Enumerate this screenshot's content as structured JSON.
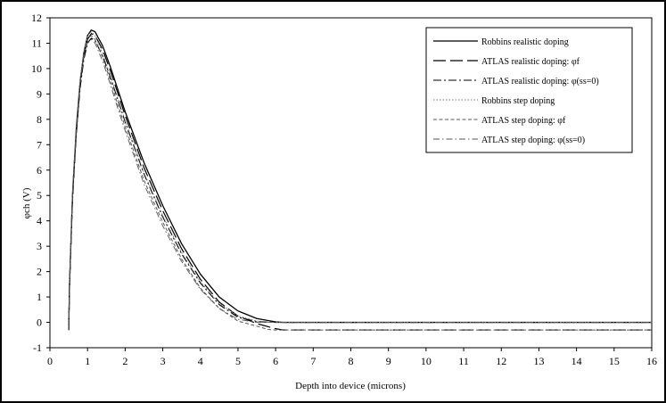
{
  "chart_data": {
    "type": "line",
    "xlabel": "Depth into device (microns)",
    "ylabel": "φch (V)",
    "xlim": [
      0,
      16
    ],
    "ylim": [
      -1,
      12
    ],
    "x_ticks": [
      "0",
      "1",
      "2",
      "3",
      "4",
      "5",
      "6",
      "7",
      "8",
      "9",
      "10",
      "11",
      "12",
      "13",
      "14",
      "15",
      "16"
    ],
    "y_ticks": [
      "-1",
      "0",
      "1",
      "2",
      "3",
      "4",
      "5",
      "6",
      "7",
      "8",
      "9",
      "10",
      "11",
      "12"
    ],
    "grid": false,
    "legend_position": "top-right",
    "series": [
      {
        "name": "Robbins realistic doping",
        "style": "solid",
        "color": "#000000",
        "points": [
          [
            0.5,
            -0.3
          ],
          [
            0.52,
            1.5
          ],
          [
            0.6,
            5.0
          ],
          [
            0.7,
            7.6
          ],
          [
            0.8,
            9.4
          ],
          [
            0.9,
            10.6
          ],
          [
            1.0,
            11.3
          ],
          [
            1.1,
            11.52
          ],
          [
            1.2,
            11.45
          ],
          [
            1.4,
            10.9
          ],
          [
            1.6,
            10.1
          ],
          [
            1.8,
            9.2
          ],
          [
            2.0,
            8.3
          ],
          [
            2.5,
            6.3
          ],
          [
            3.0,
            4.6
          ],
          [
            3.5,
            3.1
          ],
          [
            4.0,
            1.9
          ],
          [
            4.5,
            1.0
          ],
          [
            5.0,
            0.45
          ],
          [
            5.5,
            0.15
          ],
          [
            6.0,
            0.02
          ],
          [
            6.2,
            0.0
          ],
          [
            16.0,
            0.0
          ]
        ]
      },
      {
        "name": "ATLAS realistic doping: φf",
        "style": "long-dash",
        "color": "#000000",
        "points": [
          [
            0.5,
            -0.3
          ],
          [
            0.52,
            1.4
          ],
          [
            0.6,
            4.9
          ],
          [
            0.7,
            7.5
          ],
          [
            0.8,
            9.3
          ],
          [
            0.9,
            10.5
          ],
          [
            1.0,
            11.15
          ],
          [
            1.1,
            11.38
          ],
          [
            1.2,
            11.3
          ],
          [
            1.4,
            10.75
          ],
          [
            1.6,
            9.95
          ],
          [
            1.8,
            9.05
          ],
          [
            2.0,
            8.15
          ],
          [
            2.5,
            6.1
          ],
          [
            3.0,
            4.4
          ],
          [
            3.5,
            2.9
          ],
          [
            4.0,
            1.7
          ],
          [
            4.5,
            0.8
          ],
          [
            5.0,
            0.25
          ],
          [
            5.5,
            -0.05
          ],
          [
            6.0,
            -0.25
          ],
          [
            6.2,
            -0.3
          ],
          [
            16.0,
            -0.3
          ]
        ]
      },
      {
        "name": "ATLAS realistic doping: φ(ss=0)",
        "style": "dash-dot",
        "color": "#000000",
        "points": [
          [
            0.5,
            -0.3
          ],
          [
            0.52,
            1.3
          ],
          [
            0.6,
            4.8
          ],
          [
            0.7,
            7.4
          ],
          [
            0.8,
            9.2
          ],
          [
            0.9,
            10.35
          ],
          [
            1.0,
            11.0
          ],
          [
            1.1,
            11.2
          ],
          [
            1.2,
            11.1
          ],
          [
            1.4,
            10.5
          ],
          [
            1.6,
            9.7
          ],
          [
            1.8,
            8.8
          ],
          [
            2.0,
            7.9
          ],
          [
            2.5,
            5.85
          ],
          [
            3.0,
            4.15
          ],
          [
            3.5,
            2.7
          ],
          [
            4.0,
            1.55
          ],
          [
            4.5,
            0.7
          ],
          [
            5.0,
            0.2
          ],
          [
            5.5,
            0.03
          ],
          [
            6.0,
            0.0
          ],
          [
            16.0,
            0.0
          ]
        ]
      },
      {
        "name": "Robbins step doping",
        "style": "dotted",
        "color": "#777777",
        "points": [
          [
            0.5,
            -0.3
          ],
          [
            0.52,
            1.6
          ],
          [
            0.6,
            5.2
          ],
          [
            0.7,
            7.8
          ],
          [
            0.8,
            9.6
          ],
          [
            0.9,
            10.7
          ],
          [
            1.0,
            11.3
          ],
          [
            1.1,
            11.45
          ],
          [
            1.2,
            11.3
          ],
          [
            1.4,
            10.6
          ],
          [
            1.6,
            9.75
          ],
          [
            1.8,
            8.85
          ],
          [
            2.0,
            7.95
          ],
          [
            2.5,
            5.9
          ],
          [
            3.0,
            4.2
          ],
          [
            3.5,
            2.75
          ],
          [
            4.0,
            1.6
          ],
          [
            4.5,
            0.75
          ],
          [
            5.0,
            0.25
          ],
          [
            5.5,
            0.05
          ],
          [
            6.0,
            0.0
          ],
          [
            16.0,
            0.0
          ]
        ]
      },
      {
        "name": "ATLAS step doping: φf",
        "style": "short-dash",
        "color": "#555555",
        "points": [
          [
            0.5,
            -0.3
          ],
          [
            0.52,
            1.5
          ],
          [
            0.6,
            5.1
          ],
          [
            0.7,
            7.7
          ],
          [
            0.8,
            9.5
          ],
          [
            0.9,
            10.6
          ],
          [
            1.0,
            11.2
          ],
          [
            1.1,
            11.3
          ],
          [
            1.2,
            11.15
          ],
          [
            1.4,
            10.45
          ],
          [
            1.6,
            9.55
          ],
          [
            1.8,
            8.6
          ],
          [
            2.0,
            7.7
          ],
          [
            2.5,
            5.6
          ],
          [
            3.0,
            3.95
          ],
          [
            3.5,
            2.5
          ],
          [
            4.0,
            1.35
          ],
          [
            4.5,
            0.55
          ],
          [
            5.0,
            0.05
          ],
          [
            5.5,
            -0.15
          ],
          [
            5.8,
            -0.28
          ],
          [
            6.0,
            -0.3
          ],
          [
            16.0,
            -0.3
          ]
        ]
      },
      {
        "name": "ATLAS step doping: φ(ss=0)",
        "style": "dash-dot-thin",
        "color": "#555555",
        "points": [
          [
            0.5,
            -0.3
          ],
          [
            0.52,
            1.4
          ],
          [
            0.6,
            5.0
          ],
          [
            0.7,
            7.6
          ],
          [
            0.8,
            9.4
          ],
          [
            0.9,
            10.45
          ],
          [
            1.0,
            11.05
          ],
          [
            1.1,
            11.15
          ],
          [
            1.2,
            11.0
          ],
          [
            1.4,
            10.3
          ],
          [
            1.6,
            9.4
          ],
          [
            1.8,
            8.45
          ],
          [
            2.0,
            7.55
          ],
          [
            2.5,
            5.45
          ],
          [
            3.0,
            3.8
          ],
          [
            3.5,
            2.4
          ],
          [
            4.0,
            1.3
          ],
          [
            4.5,
            0.55
          ],
          [
            5.0,
            0.12
          ],
          [
            5.5,
            0.0
          ],
          [
            16.0,
            0.0
          ]
        ]
      }
    ]
  }
}
